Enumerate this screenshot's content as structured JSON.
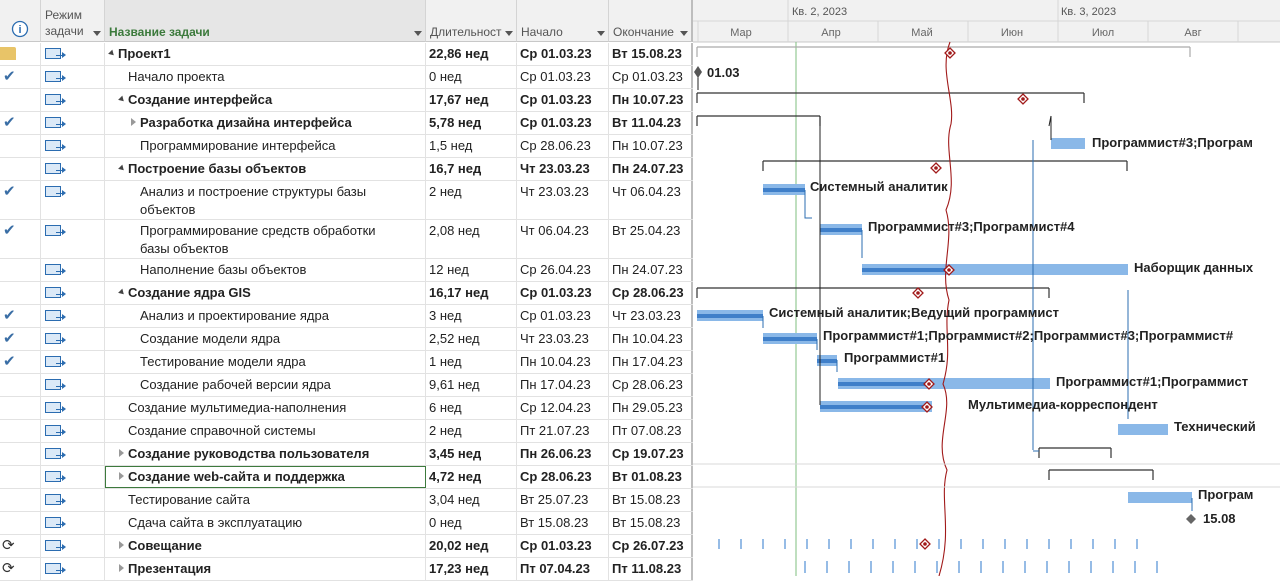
{
  "columns": {
    "info_icon": "info-icon",
    "mode": "Режим задачи",
    "name": "Название задачи",
    "duration": "Длительност",
    "start": "Начало",
    "end": "Окончание"
  },
  "timescale": {
    "quarters": [
      "Кв. 2, 2023",
      "Кв. 3, 2023"
    ],
    "months": [
      "Мар",
      "Апр",
      "Май",
      "Июн",
      "Июл",
      "Авг"
    ]
  },
  "tasks": [
    {
      "name": "Проект1",
      "dur": "22,86 нед",
      "start": "Ср 01.03.23",
      "end": "Вт 15.08.23",
      "bold": true,
      "level": 0,
      "outline": "open",
      "indicator": "folder"
    },
    {
      "name": "Начало проекта",
      "dur": "0 нед",
      "start": "Ср 01.03.23",
      "end": "Ср 01.03.23",
      "bold": false,
      "level": 1,
      "indicator": "check"
    },
    {
      "name": "Создание интерфейса",
      "dur": "17,67 нед",
      "start": "Ср 01.03.23",
      "end": "Пн 10.07.23",
      "bold": true,
      "level": 1,
      "outline": "open"
    },
    {
      "name": "Разработка дизайна интерфейса",
      "dur": "5,78 нед",
      "start": "Ср 01.03.23",
      "end": "Вт 11.04.23",
      "bold": true,
      "level": 2,
      "outline": "closed",
      "indicator": "check"
    },
    {
      "name": "Программирование интерфейса",
      "dur": "1,5 нед",
      "start": "Ср 28.06.23",
      "end": "Пн 10.07.23",
      "bold": false,
      "level": 2
    },
    {
      "name": "Построение базы объектов",
      "dur": "16,7 нед",
      "start": "Чт 23.03.23",
      "end": "Пн 24.07.23",
      "bold": true,
      "level": 1,
      "outline": "open"
    },
    {
      "name": "Анализ и построение структуры базы",
      "name2": "объектов",
      "dur": "2 нед",
      "start": "Чт 23.03.23",
      "end": "Чт 06.04.23",
      "bold": false,
      "level": 2,
      "indicator": "check",
      "tall": true
    },
    {
      "name": "Программирование средств обработки",
      "name2": "базы объектов",
      "dur": "2,08 нед",
      "start": "Чт 06.04.23",
      "end": "Вт 25.04.23",
      "bold": false,
      "level": 2,
      "indicator": "check",
      "tall": true
    },
    {
      "name": "Наполнение базы объектов",
      "dur": "12 нед",
      "start": "Ср 26.04.23",
      "end": "Пн 24.07.23",
      "bold": false,
      "level": 2
    },
    {
      "name": "Создание ядра GIS",
      "dur": "16,17 нед",
      "start": "Ср 01.03.23",
      "end": "Ср 28.06.23",
      "bold": true,
      "level": 1,
      "outline": "open"
    },
    {
      "name": "Анализ и проектирование ядра",
      "dur": "3 нед",
      "start": "Ср 01.03.23",
      "end": "Чт 23.03.23",
      "bold": false,
      "level": 2,
      "indicator": "check"
    },
    {
      "name": "Создание модели ядра",
      "dur": "2,52 нед",
      "start": "Чт 23.03.23",
      "end": "Пн 10.04.23",
      "bold": false,
      "level": 2,
      "indicator": "check"
    },
    {
      "name": "Тестирование модели ядра",
      "dur": "1 нед",
      "start": "Пн 10.04.23",
      "end": "Пн 17.04.23",
      "bold": false,
      "level": 2,
      "indicator": "check"
    },
    {
      "name": "Создание рабочей версии ядра",
      "dur": "9,61 нед",
      "start": "Пн 17.04.23",
      "end": "Ср 28.06.23",
      "bold": false,
      "level": 2
    },
    {
      "name": "Создание мультимедиа-наполнения",
      "dur": "6 нед",
      "start": "Ср 12.04.23",
      "end": "Пн 29.05.23",
      "bold": false,
      "level": 1
    },
    {
      "name": "Создание справочной системы",
      "dur": "2 нед",
      "start": "Пт 21.07.23",
      "end": "Пт 07.08.23",
      "bold": false,
      "level": 1
    },
    {
      "name": "Создание руководства пользователя",
      "dur": "3,45 нед",
      "start": "Пн 26.06.23",
      "end": "Ср 19.07.23",
      "bold": true,
      "level": 1,
      "outline": "closed"
    },
    {
      "name": "Создание web-сайта и поддержка",
      "dur": "4,72 нед",
      "start": "Ср 28.06.23",
      "end": "Вт 01.08.23",
      "bold": true,
      "level": 1,
      "outline": "closed",
      "selected": true
    },
    {
      "name": "Тестирование сайта",
      "dur": "3,04 нед",
      "start": "Вт 25.07.23",
      "end": "Вт 15.08.23",
      "bold": false,
      "level": 1
    },
    {
      "name": "Сдача сайта в эксплуатацию",
      "dur": "0 нед",
      "start": "Вт 15.08.23",
      "end": "Вт 15.08.23",
      "bold": false,
      "level": 1
    },
    {
      "name": "Совещание",
      "dur": "20,02 нед",
      "start": "Ср 01.03.23",
      "end": "Ср 26.07.23",
      "bold": true,
      "level": 1,
      "outline": "closed",
      "indicator": "recurring"
    },
    {
      "name": "Презентация",
      "dur": "17,23 нед",
      "start": "Пт 07.04.23",
      "end": "Пт 11.08.23",
      "bold": true,
      "level": 1,
      "outline": "closed",
      "indicator": "recurring"
    }
  ],
  "gantt_labels": {
    "start_milestone": "01.03",
    "prog_interface": "Программист#3;Програм",
    "analyst": "Системный аналитик",
    "prog34": "Программист#3;Программист#4",
    "typist": "Наборщик данных",
    "analyst_lead": "Системный аналитик;Ведущий программист",
    "prog_all": "Программист#1;Программист#2;Программист#3;Программист#",
    "prog1": "Программист#1",
    "prog1b": "Программист#1;Программист",
    "multimedia": "Мультимедиа-корреспондент",
    "tech": "Технический",
    "prog_site": "Програм",
    "end_milestone": "15.08"
  },
  "colors": {
    "bar": "#8ab8e8",
    "bar_progress": "#3f7fc9",
    "critical": "#a11a1a",
    "today": "#7fbf7f"
  }
}
